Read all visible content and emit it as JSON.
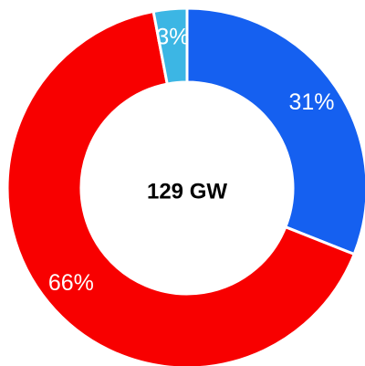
{
  "chart_data": {
    "type": "pie",
    "variant": "donut",
    "title": "",
    "center_label": "129 GW",
    "slices": [
      {
        "label": "31%",
        "value": 31,
        "color": "#1560f0"
      },
      {
        "label": "66%",
        "value": 66,
        "color": "#f80000"
      },
      {
        "label": "3%",
        "value": 3,
        "color": "#3cb6e4"
      }
    ],
    "legend": "none",
    "start": "top",
    "direction": "clockwise"
  }
}
